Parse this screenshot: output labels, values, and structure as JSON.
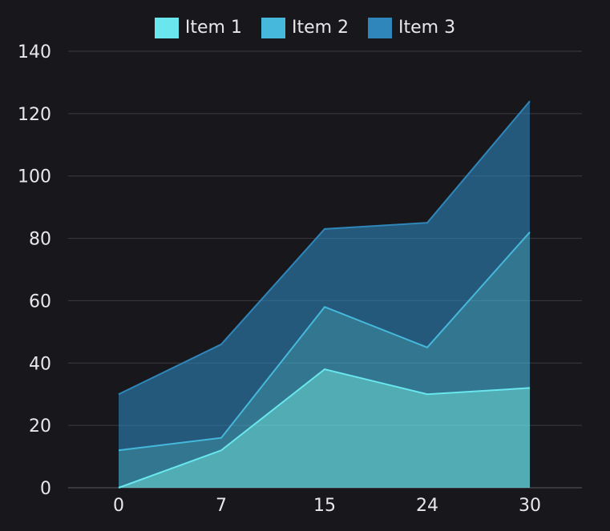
{
  "chart_data": {
    "type": "area",
    "stacked": true,
    "x": [
      0,
      7,
      15,
      24,
      30
    ],
    "series": [
      {
        "name": "Item 1",
        "values": [
          0,
          12,
          38,
          30,
          32
        ],
        "color": "#6ae6ee"
      },
      {
        "name": "Item 2",
        "values": [
          12,
          4,
          20,
          15,
          50
        ],
        "color": "#45b8dc"
      },
      {
        "name": "Item 3",
        "values": [
          18,
          30,
          25,
          40,
          42
        ],
        "color": "#2f86ba"
      }
    ],
    "ylim": [
      0,
      140
    ],
    "yticks": [
      0,
      20,
      40,
      60,
      80,
      100,
      120,
      140
    ],
    "grid": true,
    "legend_position": "top-center",
    "background": "#18181c",
    "gridline_color": "#3a3a40",
    "text_color": "#e8e8ea"
  }
}
